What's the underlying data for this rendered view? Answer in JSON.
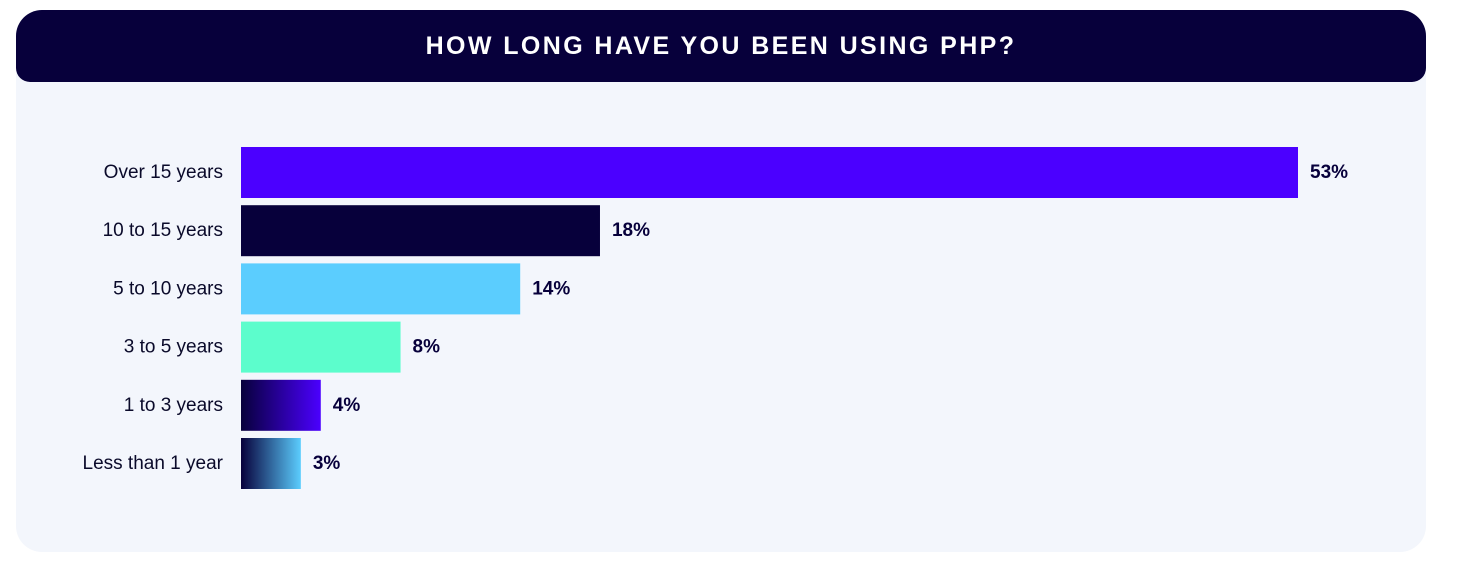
{
  "chart_data": {
    "type": "bar",
    "orientation": "horizontal",
    "title": "HOW LONG HAVE YOU BEEN USING PHP?",
    "categories": [
      "Over 15 years",
      "10 to 15 years",
      "5 to 10 years",
      "3 to 5 years",
      "1 to 3 years",
      "Less than 1 year"
    ],
    "values": [
      53,
      18,
      14,
      8,
      4,
      3
    ],
    "value_labels": [
      "53%",
      "18%",
      "14%",
      "8%",
      "4%",
      "3%"
    ],
    "unit": "%",
    "bar_colors": [
      {
        "type": "solid",
        "colors": [
          "#4b00ff"
        ]
      },
      {
        "type": "solid",
        "colors": [
          "#07003b"
        ]
      },
      {
        "type": "solid",
        "colors": [
          "#5bcdfe"
        ]
      },
      {
        "type": "solid",
        "colors": [
          "#5cfdcc"
        ]
      },
      {
        "type": "gradient",
        "colors": [
          "#07003b",
          "#4b00ff"
        ]
      },
      {
        "type": "gradient",
        "colors": [
          "#07003b",
          "#5bcdfe"
        ]
      }
    ],
    "grid": false,
    "legend": "none"
  },
  "colors": {
    "header_bg": "#07003b",
    "card_bg": "#f3f6fc",
    "header_text": "#ffffff",
    "label_text": "#07003b"
  }
}
